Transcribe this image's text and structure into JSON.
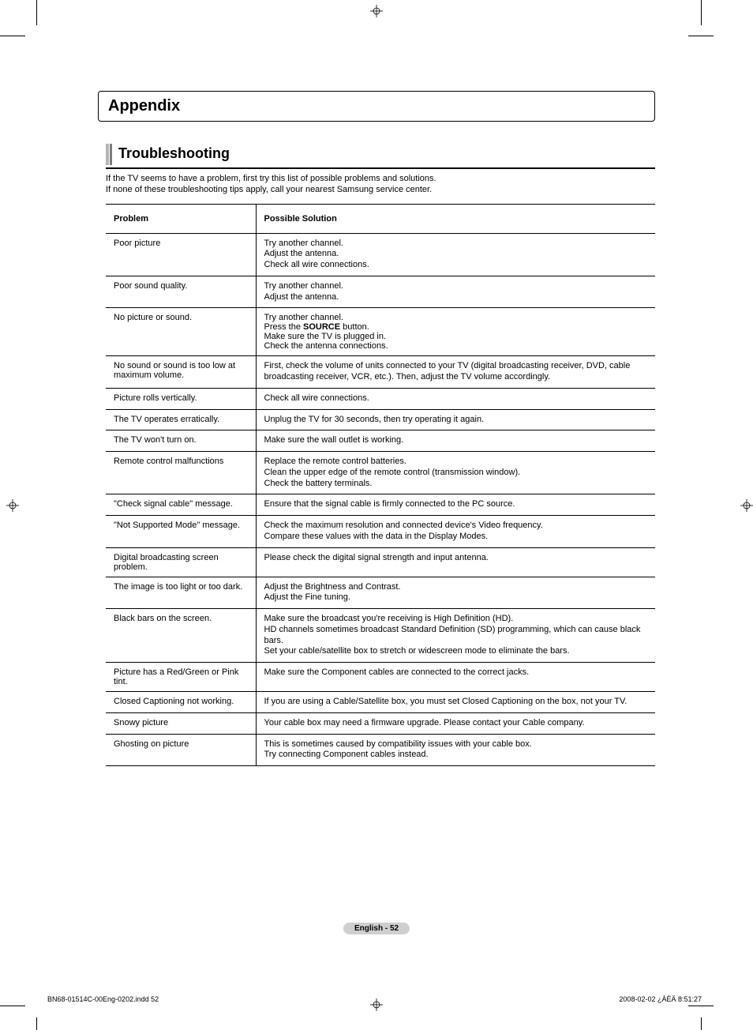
{
  "appendix_title": "Appendix",
  "section_title": "Troubleshooting",
  "intro_line1": "If the TV seems to have a problem, first try this list of possible problems and solutions.",
  "intro_line2": "If none of these troubleshooting tips apply, call your nearest Samsung service center.",
  "table": {
    "header_problem": "Problem",
    "header_solution": "Possible Solution",
    "rows": [
      {
        "problem": "Poor picture",
        "solution_lines": [
          "Try another channel.",
          "Adjust the antenna.",
          "Check all wire connections."
        ],
        "tall": false
      },
      {
        "problem": "Poor sound quality.",
        "solution_lines": [
          "Try another channel.",
          "Adjust the antenna."
        ],
        "tall": false
      },
      {
        "problem": "No picture or sound.",
        "solution_html": "Try another channel.<br>Press the <b>SOURCE</b> button.<br>Make sure the TV is plugged in.<br>Check the antenna connections.",
        "tall": false
      },
      {
        "problem": "No sound or sound is too low at maximum volume.",
        "solution_lines": [
          "First, check the volume of units connected to your TV (digital broadcasting receiver, DVD, cable broadcasting receiver, VCR, etc.). Then, adjust the TV volume accordingly."
        ],
        "tall": false
      },
      {
        "problem": "Picture rolls vertically.",
        "solution_lines": [
          "Check all wire connections."
        ],
        "tall": false
      },
      {
        "problem": "The TV operates erratically.",
        "solution_lines": [
          "Unplug the TV for 30 seconds, then try operating it again."
        ],
        "tall": false
      },
      {
        "problem": "The TV won't turn on.",
        "solution_lines": [
          "Make sure the wall outlet is working."
        ],
        "tall": false
      },
      {
        "problem": "Remote control malfunctions",
        "solution_lines": [
          "Replace the remote control batteries.",
          "Clean the upper edge of the remote control (transmission window).",
          "Check the battery terminals."
        ],
        "tall": false
      },
      {
        "problem": "\"Check signal cable\" message.",
        "solution_lines": [
          "Ensure that the signal cable is firmly connected to the PC source."
        ],
        "tall": false
      },
      {
        "problem": "\"Not Supported Mode\" message.",
        "solution_lines": [
          "Check the maximum resolution and connected device's Video frequency.",
          "Compare these values with the data in the Display Modes."
        ],
        "tall": false
      },
      {
        "problem": "Digital broadcasting screen problem.",
        "solution_lines": [
          "Please check the digital signal strength and input antenna."
        ],
        "tall": false
      },
      {
        "problem": "The image is too light or too dark.",
        "solution_lines": [
          "Adjust the Brightness and Contrast.",
          "Adjust the Fine tuning."
        ],
        "tall": false
      },
      {
        "problem": "Black bars on the screen.",
        "solution_lines": [
          "Make sure the broadcast you're receiving is High Definition (HD).",
          "HD channels sometimes broadcast Standard Definition (SD) programming, which can cause black bars.",
          "Set your cable/satellite box to stretch or widescreen mode to eliminate the bars."
        ],
        "tall": false
      },
      {
        "problem": "Picture has a Red/Green or Pink tint.",
        "solution_lines": [
          "Make sure the Component cables are connected to the correct jacks."
        ],
        "tall": false
      },
      {
        "problem": "Closed Captioning not working.",
        "solution_lines": [
          "If you are using a Cable/Satellite box, you must set Closed Captioning on the box, not your TV."
        ],
        "tall": true
      },
      {
        "problem": "Snowy picture",
        "solution_lines": [
          "Your cable box may need a firmware upgrade. Please contact your Cable company."
        ],
        "tall": true
      },
      {
        "problem": "Ghosting on picture",
        "solution_lines": [
          "This is sometimes caused by compatibility issues with your cable box.",
          "Try connecting Component cables instead."
        ],
        "tall": false
      }
    ]
  },
  "page_number_label": "English - 52",
  "footer_left": "BN68-01514C-00Eng-0202.indd   52",
  "footer_right": "2008-02-02   ¿ÀÈÄ 8:51:27"
}
